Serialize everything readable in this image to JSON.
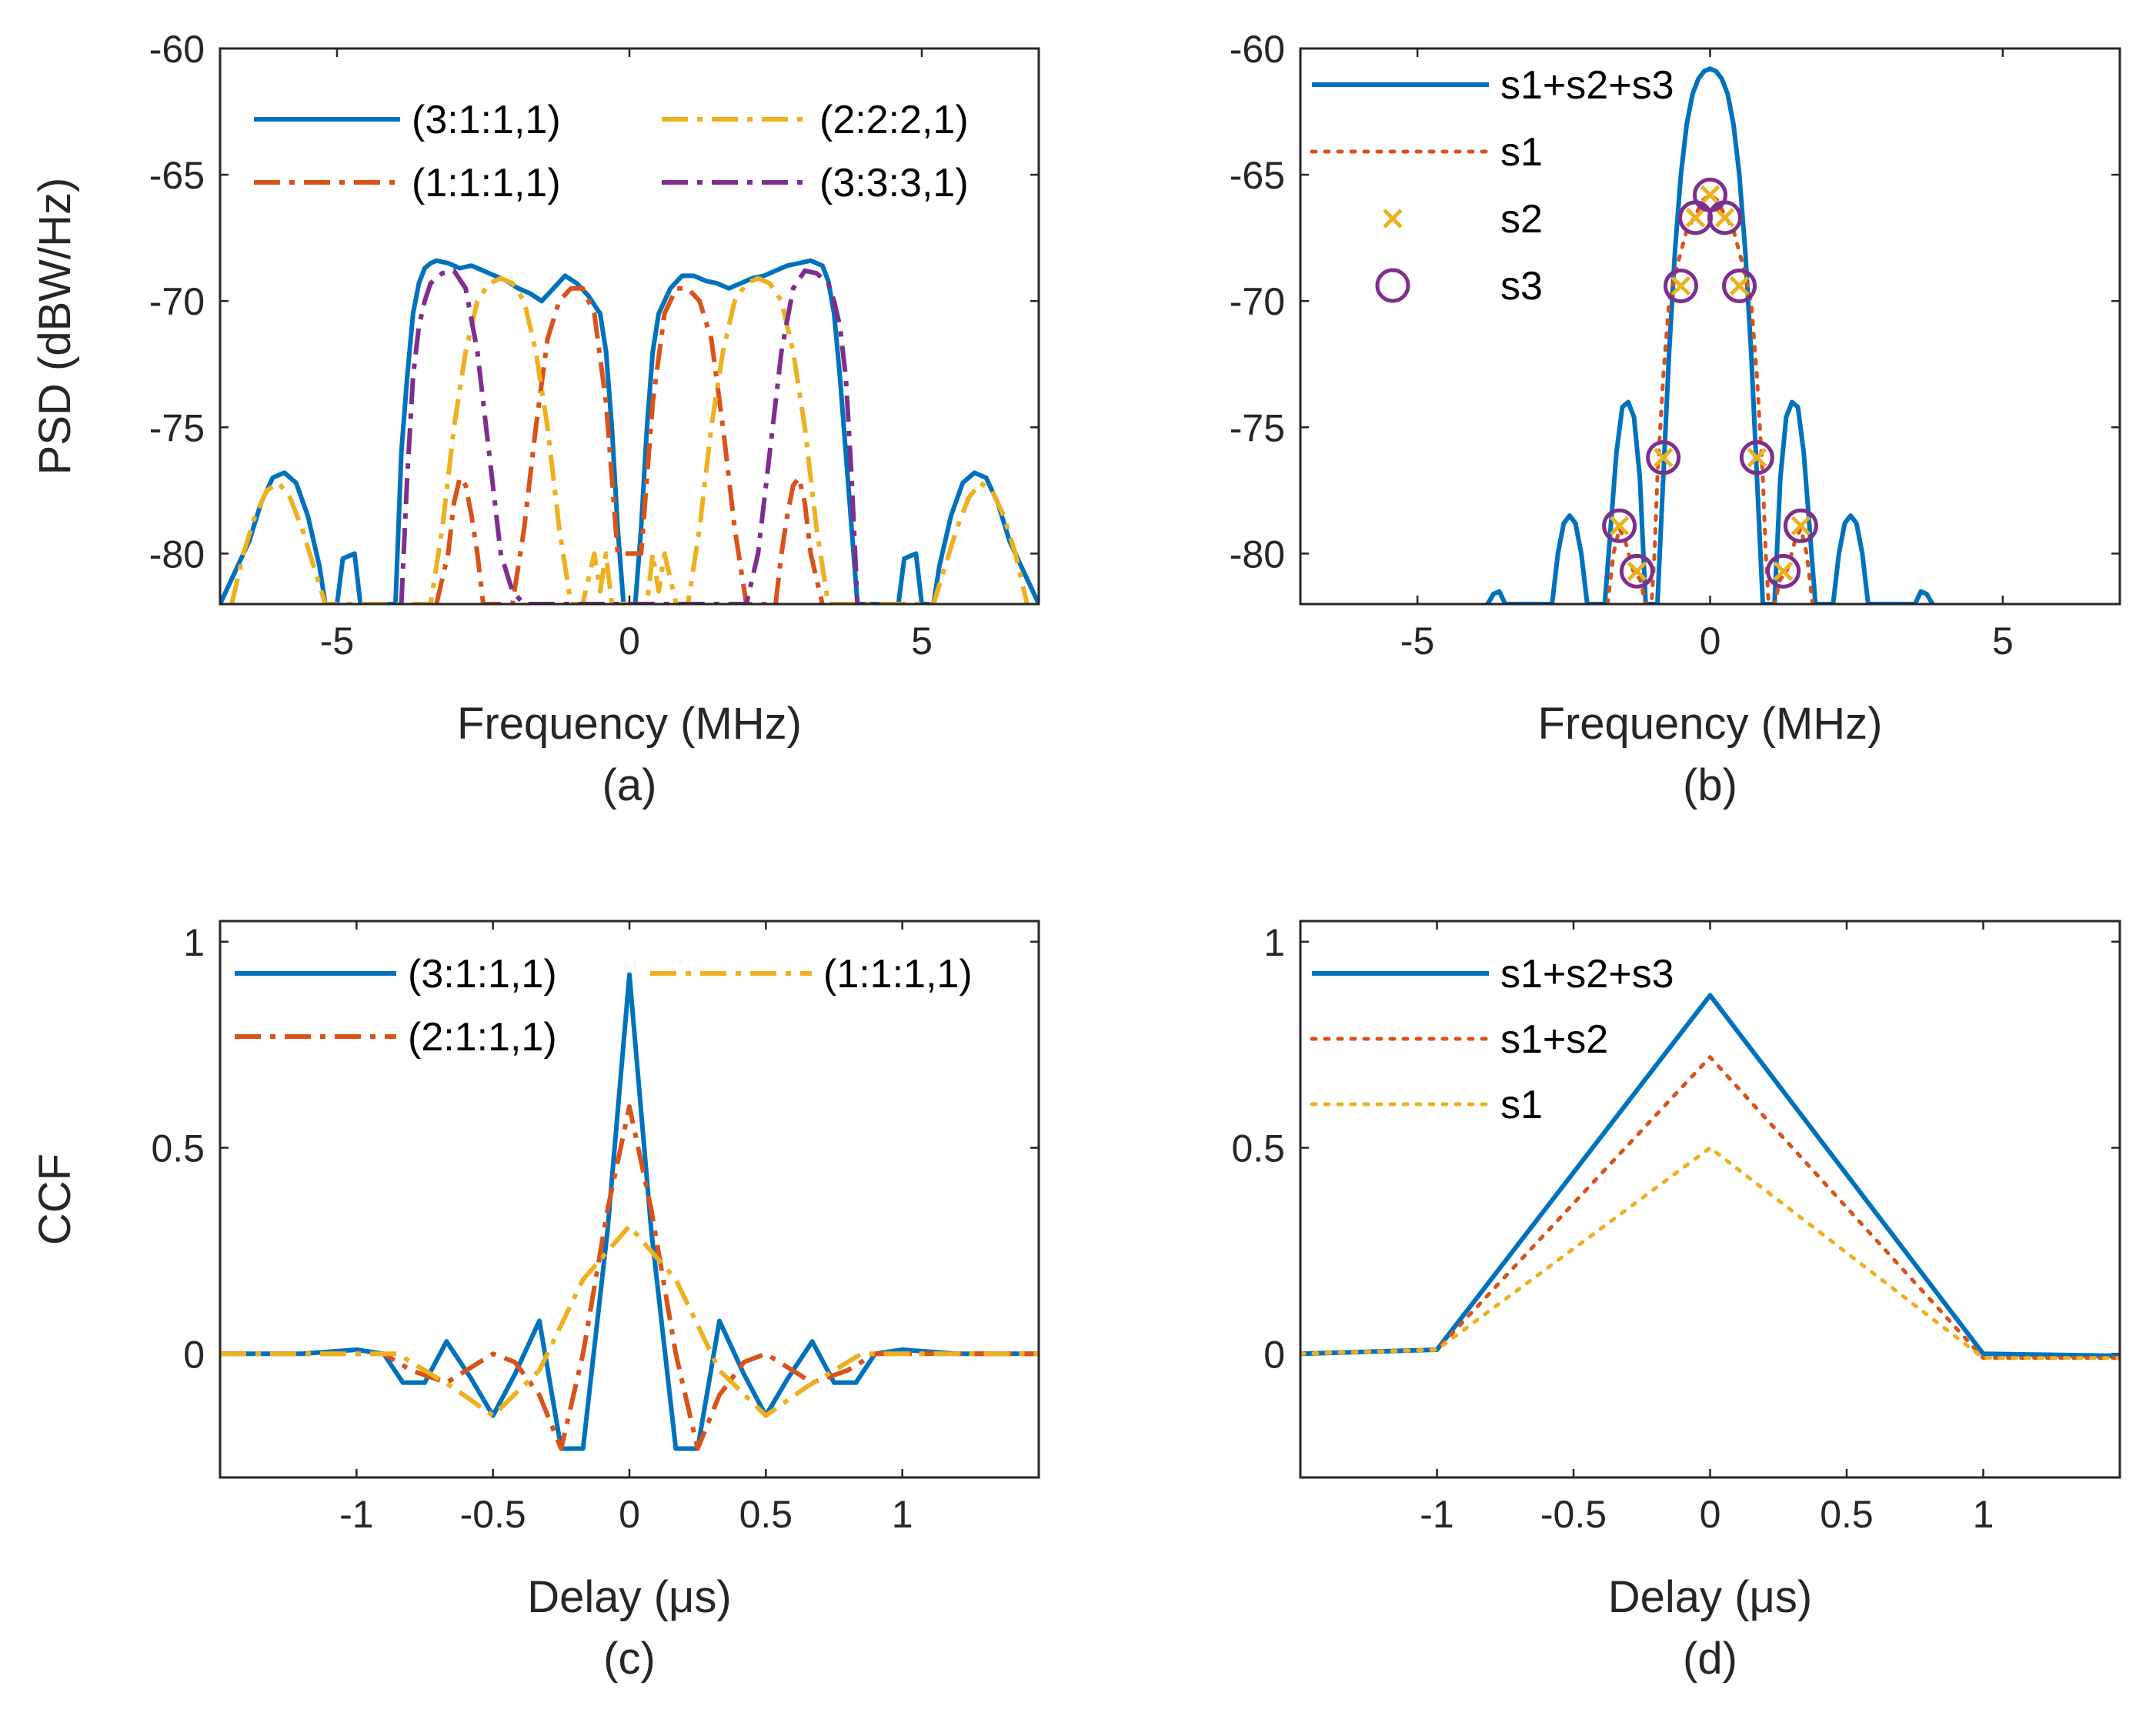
{
  "colors": {
    "blue": "#0072BD",
    "orange": "#D95319",
    "yellow": "#EDB120",
    "purple": "#7E2F8E",
    "axis": "#262626"
  },
  "chart_data": [
    {
      "id": "a",
      "type": "line",
      "panel_label": "(a)",
      "xlabel": "Frequency (MHz)",
      "ylabel": "PSD (dBW/Hz)",
      "xlim": [
        -7,
        7
      ],
      "ylim": [
        -82,
        -60
      ],
      "xticks": [
        -5,
        0,
        5
      ],
      "xticklabels": [
        "-5",
        "0",
        "5"
      ],
      "yticks": [
        -80,
        -75,
        -70,
        -65,
        -60
      ],
      "yticklabels": [
        "-80",
        "-75",
        "-70",
        "-65",
        "-60"
      ],
      "legend_location": "top",
      "legend_columns": 2,
      "series": [
        {
          "name": "(3:1:1,1)",
          "color": "#0072BD",
          "dash": "solid",
          "x": [
            -7,
            -6.8,
            -6.5,
            -6.3,
            -6.1,
            -5.9,
            -5.7,
            -5.5,
            -5.3,
            -5.2,
            -5.0,
            -4.9,
            -4.7,
            -4.6,
            -4.4,
            -4.2,
            -4.0,
            -3.9,
            -3.8,
            -3.7,
            -3.6,
            -3.5,
            -3.4,
            -3.3,
            -3.1,
            -2.9,
            -2.7,
            -2.5,
            -2.3,
            -2.1,
            -1.9,
            -1.7,
            -1.5,
            -1.3,
            -1.1,
            -0.9,
            -0.7,
            -0.5,
            -0.4,
            -0.3,
            -0.2,
            -0.1,
            0,
            0.1,
            0.2,
            0.3,
            0.4,
            0.5,
            0.7,
            0.9,
            1.1,
            1.3,
            1.5,
            1.7,
            1.9,
            2.1,
            2.3,
            2.5,
            2.7,
            2.9,
            3.1,
            3.3,
            3.4,
            3.5,
            3.6,
            3.7,
            3.8,
            3.9,
            4.0,
            4.2,
            4.4,
            4.6,
            4.7,
            4.9,
            5.0,
            5.2,
            5.3,
            5.5,
            5.7,
            5.9,
            6.1,
            6.3,
            6.5,
            6.8,
            7
          ],
          "y": [
            -82,
            -81,
            -79.5,
            -78,
            -77,
            -76.8,
            -77.2,
            -78.5,
            -80.5,
            -82,
            -82,
            -80.2,
            -80,
            -82,
            -82,
            -82,
            -82,
            -76,
            -73,
            -70.5,
            -69.3,
            -68.7,
            -68.5,
            -68.4,
            -68.5,
            -68.7,
            -68.6,
            -68.8,
            -69,
            -69.2,
            -69.5,
            -69.7,
            -70,
            -69.5,
            -69,
            -69.3,
            -69.8,
            -70.5,
            -72,
            -75,
            -79,
            -82,
            -82,
            -82,
            -79,
            -75,
            -72,
            -70.5,
            -69.5,
            -69,
            -69,
            -69.2,
            -69.3,
            -69.5,
            -69.3,
            -69.1,
            -69,
            -68.8,
            -68.6,
            -68.5,
            -68.4,
            -68.6,
            -69.2,
            -70.5,
            -73,
            -76,
            -79,
            -82,
            -82,
            -82,
            -82,
            -82,
            -80.2,
            -80,
            -82,
            -82,
            -80.5,
            -78.5,
            -77.2,
            -76.8,
            -77,
            -78,
            -79.5,
            -81,
            -82
          ]
        },
        {
          "name": "(1:1:1,1)",
          "color": "#D95319",
          "dash": "dashdot",
          "x": [
            -3.3,
            -3.1,
            -3.0,
            -2.9,
            -2.8,
            -2.7,
            -2.6,
            -2.5,
            -2.4,
            -2.2,
            -2.0,
            -1.8,
            -1.6,
            -1.4,
            -1.2,
            -1.0,
            -0.8,
            -0.6,
            -0.4,
            -0.2,
            0.2,
            0.4,
            0.6,
            0.8,
            1.0,
            1.2,
            1.4,
            1.6,
            1.8,
            2.0,
            2.2,
            2.4,
            2.5,
            2.6,
            2.7,
            2.8,
            2.9,
            3.0,
            3.1,
            3.3
          ],
          "y": [
            -82,
            -80,
            -78,
            -77,
            -77.3,
            -78.5,
            -80,
            -82,
            -82,
            -82,
            -82,
            -79,
            -75,
            -71.5,
            -70,
            -69.5,
            -69.5,
            -70.5,
            -74,
            -80,
            -80,
            -74,
            -70.5,
            -69.5,
            -69.5,
            -70,
            -71.5,
            -75,
            -79,
            -82,
            -82,
            -82,
            -82,
            -80,
            -78.5,
            -77.3,
            -77,
            -78,
            -80,
            -82
          ]
        },
        {
          "name": "(2:2:2,1)",
          "color": "#EDB120",
          "dash": "dashdot",
          "x": [
            -6.8,
            -6.6,
            -6.4,
            -6.2,
            -6.0,
            -5.8,
            -5.6,
            -5.4,
            -5.2,
            -3.4,
            -3.2,
            -3.0,
            -2.8,
            -2.6,
            -2.4,
            -2.2,
            -2.0,
            -1.8,
            -1.6,
            -1.4,
            -1.2,
            -1.0,
            -0.8,
            -0.7,
            -0.6,
            -0.5,
            -0.4,
            -0.3,
            0.3,
            0.4,
            0.5,
            0.6,
            0.7,
            0.8,
            1.0,
            1.2,
            1.4,
            1.6,
            1.8,
            2.0,
            2.2,
            2.4,
            2.6,
            2.8,
            3.0,
            3.2,
            3.4,
            5.2,
            5.4,
            5.6,
            5.8,
            6.0,
            6.2,
            6.4,
            6.6,
            6.8
          ],
          "y": [
            -82,
            -80,
            -78.5,
            -77.5,
            -77.2,
            -77.8,
            -79,
            -80.5,
            -82,
            -82,
            -79,
            -75,
            -72,
            -70,
            -69.3,
            -69.1,
            -69.3,
            -70,
            -72,
            -75,
            -79,
            -82,
            -82,
            -81,
            -80,
            -81.5,
            -80,
            -82,
            -82,
            -80,
            -81.5,
            -80,
            -81,
            -82,
            -82,
            -79,
            -75,
            -72,
            -70,
            -69.3,
            -69.1,
            -69.3,
            -70,
            -72,
            -75,
            -79,
            -82,
            -82,
            -80.5,
            -79,
            -77.8,
            -77.2,
            -77.5,
            -78.5,
            -80,
            -82
          ]
        },
        {
          "name": "(3:3:3,1)",
          "color": "#7E2F8E",
          "dash": "dashdot",
          "x": [
            -3.9,
            -3.8,
            -3.7,
            -3.6,
            -3.5,
            -3.4,
            -3.2,
            -3.0,
            -2.8,
            -2.6,
            -2.4,
            -2.2,
            -2.0,
            -1.8,
            2.0,
            2.2,
            2.4,
            2.6,
            2.8,
            3.0,
            3.2,
            3.4,
            3.5,
            3.6,
            3.7,
            3.8,
            3.9
          ],
          "y": [
            -82,
            -77,
            -73,
            -71,
            -70,
            -69.3,
            -68.9,
            -68.8,
            -69.5,
            -72,
            -76,
            -80,
            -81.5,
            -82,
            -82,
            -80,
            -76,
            -72,
            -69.5,
            -68.8,
            -68.9,
            -69.3,
            -70,
            -71,
            -73,
            -77,
            -82
          ]
        }
      ]
    },
    {
      "id": "b",
      "type": "line",
      "panel_label": "(b)",
      "xlabel": "Frequency (MHz)",
      "ylabel": "",
      "xlim": [
        -7,
        7
      ],
      "ylim": [
        -82,
        -60
      ],
      "xticks": [
        -5,
        0,
        5
      ],
      "xticklabels": [
        "-5",
        "0",
        "5"
      ],
      "yticks": [
        -80,
        -75,
        -70,
        -65,
        -60
      ],
      "yticklabels": [
        "-80",
        "-75",
        "-70",
        "-65",
        "-60"
      ],
      "legend_location": "top-left",
      "series": [
        {
          "name": "s1+s2+s3",
          "color": "#0072BD",
          "dash": "solid",
          "x": [
            -3.8,
            -3.7,
            -3.6,
            -3.5,
            -2.7,
            -2.6,
            -2.5,
            -2.4,
            -2.3,
            -2.2,
            -2.1,
            -1.95,
            -1.8,
            -1.7,
            -1.6,
            -1.5,
            -1.4,
            -1.3,
            -1.2,
            -1.1,
            -1.0,
            -0.9,
            -0.8,
            -0.7,
            -0.6,
            -0.5,
            -0.4,
            -0.3,
            -0.2,
            -0.1,
            0,
            0.1,
            0.2,
            0.3,
            0.4,
            0.5,
            0.6,
            0.7,
            0.8,
            0.9,
            1.0,
            1.1,
            1.2,
            1.3,
            1.4,
            1.5,
            1.6,
            1.7,
            1.8,
            1.95,
            2.1,
            2.2,
            2.3,
            2.4,
            2.5,
            2.6,
            2.7,
            3.5,
            3.6,
            3.7,
            3.8
          ],
          "y": [
            -82,
            -81.6,
            -81.5,
            -82,
            -82,
            -80,
            -78.8,
            -78.5,
            -78.8,
            -80,
            -82,
            -82,
            -82,
            -79,
            -76,
            -74.2,
            -74,
            -74.6,
            -77,
            -82,
            -82,
            -82,
            -77,
            -72,
            -68,
            -65,
            -63,
            -61.8,
            -61.2,
            -60.9,
            -60.8,
            -60.9,
            -61.2,
            -61.8,
            -63,
            -65,
            -68,
            -72,
            -77,
            -82,
            -82,
            -82,
            -77,
            -74.6,
            -74,
            -74.2,
            -76,
            -79,
            -82,
            -82,
            -82,
            -80,
            -78.8,
            -78.5,
            -78.8,
            -80,
            -82,
            -82,
            -81.5,
            -81.6,
            -82
          ]
        },
        {
          "name": "s1",
          "color": "#D95319",
          "dash": "dotted",
          "x": [
            -1.75,
            -1.65,
            -1.55,
            -1.45,
            -1.3,
            -1.2,
            -1.1,
            -1.05,
            -1.0,
            -0.95,
            -0.9,
            -0.8,
            -0.7,
            -0.55,
            -0.4,
            -0.25,
            -0.12,
            0,
            0.12,
            0.25,
            0.4,
            0.55,
            0.7,
            0.8,
            0.9,
            0.95,
            1.0,
            1.05,
            1.1,
            1.2,
            1.3,
            1.45,
            1.55,
            1.65,
            1.75
          ],
          "y": [
            -82,
            -80,
            -79,
            -79.5,
            -80.8,
            -81,
            -82,
            -82,
            -82,
            -80,
            -77,
            -73,
            -70,
            -68.5,
            -67.2,
            -66.6,
            -66,
            -65.8,
            -66,
            -66.6,
            -67.2,
            -68.5,
            -70,
            -73,
            -77,
            -80,
            -82,
            -82,
            -82,
            -81,
            -80.8,
            -79.5,
            -79,
            -80,
            -82
          ]
        }
      ],
      "markers": [
        {
          "name": "s2",
          "symbol": "x",
          "color": "#EDB120",
          "x": [
            -1.55,
            -1.25,
            -0.8,
            -0.5,
            -0.25,
            0,
            0.25,
            0.5,
            0.8,
            1.25,
            1.55
          ],
          "y": [
            -78.9,
            -80.7,
            -76.2,
            -69.4,
            -66.7,
            -65.8,
            -66.7,
            -69.4,
            -76.2,
            -80.7,
            -78.9
          ]
        },
        {
          "name": "s3",
          "symbol": "o",
          "color": "#7E2F8E",
          "x": [
            -1.55,
            -1.25,
            -0.8,
            -0.5,
            -0.25,
            0,
            0.25,
            0.5,
            0.8,
            1.25,
            1.55
          ],
          "y": [
            -78.9,
            -80.7,
            -76.2,
            -69.4,
            -66.7,
            -65.8,
            -66.7,
            -69.4,
            -76.2,
            -80.7,
            -78.9
          ]
        }
      ]
    },
    {
      "id": "c",
      "type": "line",
      "panel_label": "(c)",
      "xlabel": "Delay (μs)",
      "ylabel": "CCF",
      "xlim": [
        -1.5,
        1.5
      ],
      "ylim": [
        -0.3,
        1.05
      ],
      "xticks": [
        -1,
        -0.5,
        0,
        0.5,
        1
      ],
      "xticklabels": [
        "-1",
        "-0.5",
        "0",
        "0.5",
        "1"
      ],
      "yticks": [
        0,
        0.5,
        1
      ],
      "yticklabels": [
        "0",
        "0.5",
        "1"
      ],
      "legend_location": "top",
      "legend_columns": 2,
      "series": [
        {
          "name": "(3:1:1,1)",
          "color": "#0072BD",
          "dash": "solid",
          "x": [
            -1.5,
            -1.2,
            -1.0,
            -0.9,
            -0.83,
            -0.75,
            -0.67,
            -0.58,
            -0.5,
            -0.42,
            -0.33,
            -0.25,
            -0.17,
            -0.08,
            0,
            0.08,
            0.17,
            0.25,
            0.33,
            0.42,
            0.5,
            0.58,
            0.67,
            0.75,
            0.83,
            0.9,
            1.0,
            1.2,
            1.5
          ],
          "y": [
            0,
            0,
            0.01,
            0,
            -0.07,
            -0.07,
            0.03,
            -0.06,
            -0.15,
            -0.05,
            0.08,
            -0.23,
            -0.23,
            0.3,
            0.92,
            0.3,
            -0.23,
            -0.23,
            0.08,
            -0.05,
            -0.15,
            -0.06,
            0.03,
            -0.07,
            -0.07,
            0,
            0.01,
            0,
            0
          ]
        },
        {
          "name": "(2:1:1,1)",
          "color": "#D95319",
          "dash": "dashdot",
          "x": [
            -1.5,
            -1.0,
            -0.9,
            -0.8,
            -0.67,
            -0.5,
            -0.42,
            -0.33,
            -0.25,
            -0.17,
            -0.08,
            0,
            0.08,
            0.17,
            0.25,
            0.33,
            0.42,
            0.5,
            0.67,
            0.8,
            0.9,
            1.0,
            1.5
          ],
          "y": [
            0,
            0,
            0,
            -0.04,
            -0.07,
            0,
            -0.02,
            -0.1,
            -0.23,
            0,
            0.35,
            0.6,
            0.35,
            0,
            -0.23,
            -0.1,
            -0.02,
            0,
            -0.07,
            -0.04,
            0,
            0,
            0
          ]
        },
        {
          "name": "(1:1:1,1)",
          "color": "#EDB120",
          "dash": "dashdot",
          "x": [
            -1.5,
            -0.85,
            -0.75,
            -0.65,
            -0.5,
            -0.33,
            -0.17,
            0,
            0.17,
            0.33,
            0.5,
            0.65,
            0.75,
            0.85,
            1.5
          ],
          "y": [
            0,
            0,
            -0.04,
            -0.08,
            -0.15,
            -0.04,
            0.18,
            0.31,
            0.18,
            -0.04,
            -0.15,
            -0.08,
            -0.04,
            0,
            0
          ]
        }
      ]
    },
    {
      "id": "d",
      "type": "line",
      "panel_label": "(d)",
      "xlabel": "Delay (μs)",
      "ylabel": "",
      "xlim": [
        -1.5,
        1.5
      ],
      "ylim": [
        -0.3,
        1.05
      ],
      "xticks": [
        -1,
        -0.5,
        0,
        0.5,
        1
      ],
      "xticklabels": [
        "-1",
        "-0.5",
        "0",
        "0.5",
        "1"
      ],
      "yticks": [
        0,
        0.5,
        1
      ],
      "yticklabels": [
        "0",
        "0.5",
        "1"
      ],
      "legend_location": "top-left",
      "series": [
        {
          "name": "s1+s2+s3",
          "color": "#0072BD",
          "dash": "solid",
          "x": [
            -1.5,
            -1.0,
            0,
            1.0,
            1.5
          ],
          "y": [
            0,
            0.01,
            0.87,
            0,
            -0.005
          ]
        },
        {
          "name": "s1+s2",
          "color": "#D95319",
          "dash": "dotted",
          "x": [
            -1.5,
            -1.0,
            0,
            1.0,
            1.5
          ],
          "y": [
            0,
            0.01,
            0.72,
            -0.01,
            -0.01
          ]
        },
        {
          "name": "s1",
          "color": "#EDB120",
          "dash": "dotted",
          "x": [
            -1.5,
            -1.0,
            0,
            1.0,
            1.5
          ],
          "y": [
            0,
            0.01,
            0.5,
            -0.01,
            -0.01
          ]
        }
      ]
    }
  ]
}
